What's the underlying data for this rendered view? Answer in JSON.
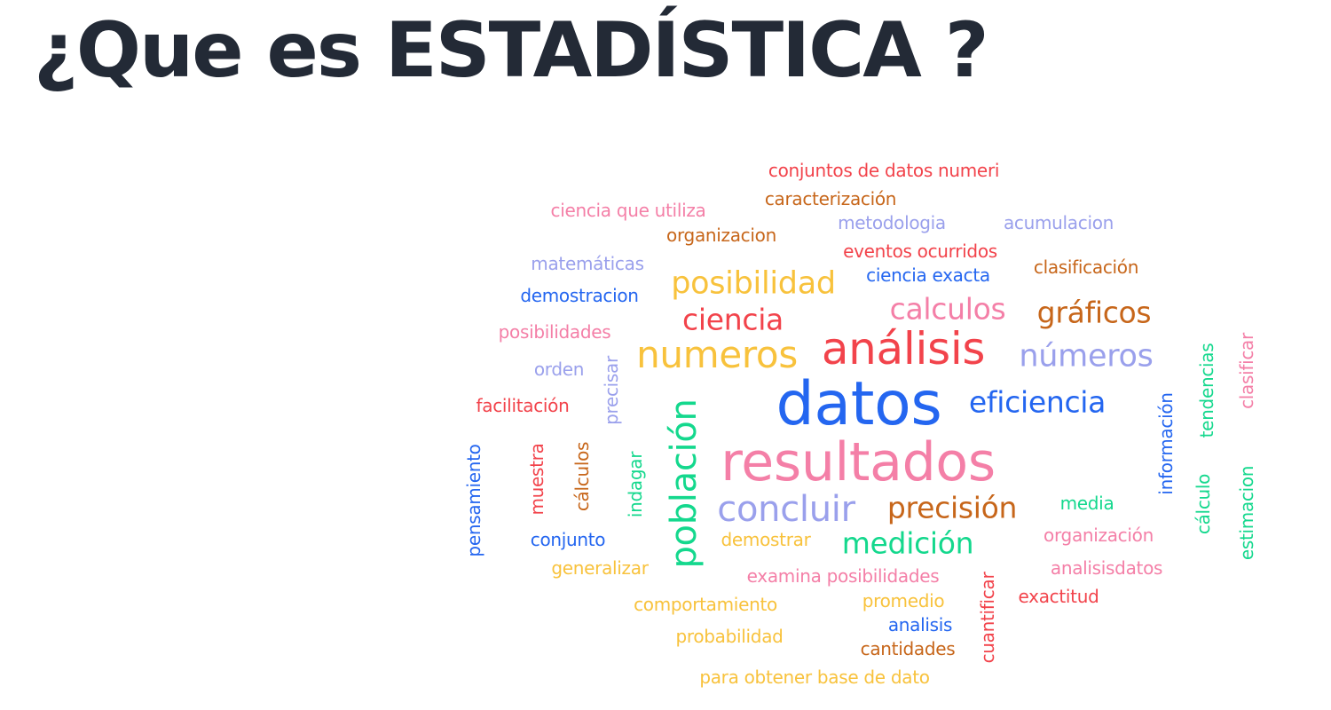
{
  "slide": {
    "title": "¿Que es ESTADÍSTICA ?"
  },
  "colors": {
    "red": "#f2434b",
    "orange": "#c7661a",
    "pink": "#f47fa7",
    "lavender": "#9aa0ec",
    "blue": "#2466f0",
    "yellow": "#f8c23c",
    "green": "#14d88d",
    "title": "#232a36"
  },
  "wordcloud": {
    "words": [
      "conjuntos de datos numeri",
      "caracterización",
      "ciencia que utiliza",
      "metodologia",
      "acumulacion",
      "organizacion",
      "eventos ocurridos",
      "matemáticas",
      "clasificación",
      "ciencia exacta",
      "demostracion",
      "posibilidad",
      "calculos",
      "gráficos",
      "ciencia",
      "posibilidades",
      "análisis",
      "numeros",
      "números",
      "orden",
      "clasificar",
      "precisar",
      "tendencias",
      "datos",
      "eficiencia",
      "facilitación",
      "información",
      "población",
      "resultados",
      "pensamiento",
      "muestra",
      "cálculos",
      "indagar",
      "concluir",
      "precisión",
      "media",
      "cálculo",
      "estimacion",
      "conjunto",
      "demostrar",
      "medición",
      "organización",
      "generalizar",
      "examina posibilidades",
      "analisisdatos",
      "cuantificar",
      "promedio",
      "exactitud",
      "comportamiento",
      "analisis",
      "probabilidad",
      "cantidades",
      "para obtener base de dato"
    ]
  }
}
